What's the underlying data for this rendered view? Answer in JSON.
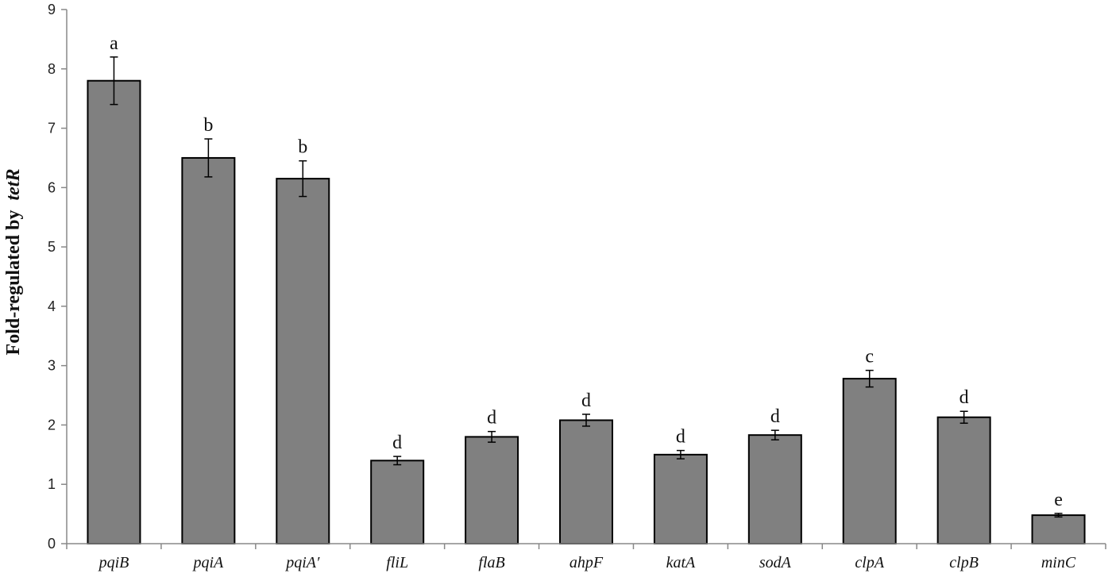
{
  "chart_data": {
    "type": "bar",
    "categories": [
      "pqiB",
      "pqiA",
      "pqiA′",
      "fliL",
      "flaB",
      "ahpF",
      "katA",
      "sodA",
      "clpA",
      "clpB",
      "minC"
    ],
    "values": [
      7.8,
      6.5,
      6.15,
      1.4,
      1.8,
      2.08,
      1.5,
      1.83,
      2.78,
      2.13,
      0.48
    ],
    "errors": [
      0.4,
      0.32,
      0.3,
      0.07,
      0.09,
      0.1,
      0.07,
      0.08,
      0.14,
      0.1,
      0.03
    ],
    "significance": [
      "a",
      "b",
      "b",
      "d",
      "d",
      "d",
      "d",
      "d",
      "c",
      "d",
      "e"
    ],
    "ylabel": "Fold-regulated by",
    "ylabel_gene": "tetR",
    "ylim": [
      0,
      9
    ],
    "yticks": [
      "0",
      "1",
      "2",
      "3",
      "4",
      "5",
      "6",
      "7",
      "8",
      "9"
    ],
    "bar_color": "#808080",
    "grid": false,
    "legend": "none"
  }
}
